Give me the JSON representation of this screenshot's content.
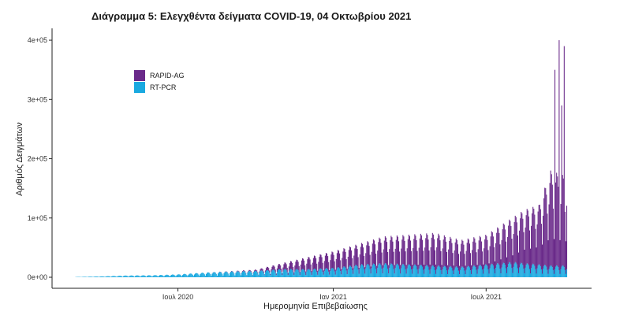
{
  "chart_data": {
    "type": "bar",
    "title": "Διάγραμμα 5: Ελεγχθέντα δείγματα COVID-19, 04 Οκτωβρίου 2021",
    "xlabel": "Ημερομηνία Επιβεβαίωσης",
    "ylabel": "Αριθμός Δειγμάτων",
    "stacked": true,
    "x_range": [
      "2020-03-01",
      "2021-10-04"
    ],
    "ylim": [
      0,
      420000
    ],
    "y_ticks": [
      0,
      100000,
      200000,
      300000,
      400000
    ],
    "y_tick_labels": [
      "0e+00",
      "1e+05",
      "2e+05",
      "3e+05",
      "4e+05"
    ],
    "x_ticks": [
      "2020-07-01",
      "2021-01-01",
      "2021-07-01"
    ],
    "x_tick_labels": [
      "Ιουλ 2020",
      "Ιαν 2021",
      "Ιουλ 2021"
    ],
    "legend_position": "top-left",
    "grid": false,
    "sampling": "weekly peak / weekly trough, day of week Sunday = trough",
    "series": [
      {
        "name": "RAPID-AG",
        "color": "#6a2a8a",
        "x": [
          "2020-03-01",
          "2020-04-01",
          "2020-05-01",
          "2020-06-01",
          "2020-07-01",
          "2020-08-01",
          "2020-09-01",
          "2020-10-01",
          "2020-11-01",
          "2020-12-01",
          "2021-01-01",
          "2021-02-01",
          "2021-03-01",
          "2021-04-01",
          "2021-05-01",
          "2021-06-01",
          "2021-07-01",
          "2021-08-01",
          "2021-08-15",
          "2021-09-01",
          "2021-09-15",
          "2021-10-04"
        ],
        "peak": [
          0,
          0,
          0,
          0,
          0,
          0,
          500,
          2000,
          10000,
          20000,
          28000,
          35000,
          45000,
          50000,
          55000,
          45000,
          50000,
          75000,
          90000,
          100000,
          160000,
          150000
        ],
        "trough": [
          0,
          0,
          0,
          0,
          0,
          0,
          0,
          500,
          3000,
          6000,
          8000,
          10000,
          14000,
          15000,
          16000,
          14000,
          16000,
          30000,
          40000,
          45000,
          60000,
          55000
        ]
      },
      {
        "name": "RT-PCR",
        "color": "#1aa9e0",
        "x": [
          "2020-03-01",
          "2020-04-01",
          "2020-05-01",
          "2020-06-01",
          "2020-07-01",
          "2020-08-01",
          "2020-09-01",
          "2020-10-01",
          "2020-11-01",
          "2020-12-01",
          "2021-01-01",
          "2021-02-01",
          "2021-03-01",
          "2021-04-01",
          "2021-05-01",
          "2021-06-01",
          "2021-07-01",
          "2021-08-01",
          "2021-08-15",
          "2021-09-01",
          "2021-09-15",
          "2021-10-04"
        ],
        "peak": [
          500,
          1500,
          3000,
          3500,
          5000,
          8000,
          10000,
          11000,
          14000,
          14000,
          16000,
          22000,
          24000,
          22000,
          20000,
          18000,
          22000,
          26000,
          24000,
          22000,
          20000,
          20000
        ],
        "trough": [
          200,
          500,
          800,
          1000,
          1500,
          2500,
          3000,
          3500,
          4000,
          4000,
          4500,
          6000,
          6500,
          6000,
          5500,
          5000,
          6000,
          7000,
          6500,
          6000,
          5500,
          5500
        ]
      }
    ],
    "spikes": [
      {
        "x": "2021-09-20",
        "value": 350000
      },
      {
        "x": "2021-09-25",
        "value": 400000
      },
      {
        "x": "2021-09-28",
        "value": 290000
      },
      {
        "x": "2021-10-01",
        "value": 390000
      }
    ]
  }
}
